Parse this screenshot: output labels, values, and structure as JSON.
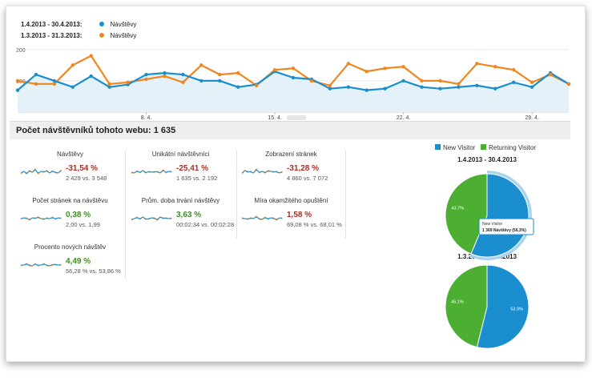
{
  "legend": [
    {
      "date": "1.4.2013 - 30.4.2013:",
      "label": "Návštěvy",
      "color": "#1a8ecf"
    },
    {
      "date": "1.3.2013 - 31.3.2013:",
      "label": "Návštěvy",
      "color": "#f0861f"
    }
  ],
  "chart_data": {
    "type": "line",
    "y_ticks": [
      "200",
      "100"
    ],
    "x_ticks": [
      "8. 4.",
      "15. 4.",
      "22. 4.",
      "29. 4."
    ],
    "ylim": [
      0,
      220
    ],
    "series": [
      {
        "name": "Návštěvy",
        "period": "1.4.2013 - 30.4.2013",
        "color": "#1a8ecf",
        "values": [
          70,
          120,
          100,
          80,
          115,
          80,
          88,
          120,
          125,
          120,
          100,
          100,
          80,
          88,
          130,
          110,
          105,
          75,
          80,
          70,
          75,
          100,
          80,
          75,
          80,
          85,
          75,
          95,
          80,
          125,
          90
        ]
      },
      {
        "name": "Návštěvy",
        "period": "1.3.2013 - 31.3.2013",
        "color": "#f0861f",
        "values": [
          100,
          90,
          90,
          150,
          180,
          90,
          95,
          105,
          115,
          95,
          150,
          120,
          125,
          85,
          135,
          140,
          100,
          85,
          155,
          130,
          140,
          145,
          100,
          100,
          90,
          155,
          145,
          135,
          95,
          120,
          90
        ]
      }
    ]
  },
  "summary": {
    "title": "Počet návštěvníků tohoto webu: 1 635"
  },
  "metrics": [
    {
      "title": "Návštěvy",
      "change": "-31,54 %",
      "trend": "negative",
      "compare": "2 429 vs. 3 548"
    },
    {
      "title": "Unikátní návštěvníci",
      "change": "-25,41 %",
      "trend": "negative",
      "compare": "1 635 vs. 2 192"
    },
    {
      "title": "Zobrazení stránek",
      "change": "-31,28 %",
      "trend": "negative",
      "compare": "4 860 vs. 7 072"
    },
    {
      "title": "Počet stránek na návštěvu",
      "change": "0,38 %",
      "trend": "positive",
      "compare": "2,00 vs. 1,99"
    },
    {
      "title": "Prům. doba trvání návštěvy",
      "change": "3,63 %",
      "trend": "positive",
      "compare": "00:02:34 vs. 00:02:28"
    },
    {
      "title": "Míra okamžitého opuštění",
      "change": "1,58 %",
      "trend": "negative",
      "compare": "69,08 % vs. 68,01 %"
    },
    {
      "title": "Procento nových návštěv",
      "change": "4,49 %",
      "trend": "positive",
      "compare": "56,28 % vs. 53,86 %"
    }
  ],
  "pie_legend": [
    {
      "label": "New Visitor",
      "color": "#1a8ecf"
    },
    {
      "label": "Returning Visitor",
      "color": "#4caf32"
    }
  ],
  "pies": [
    {
      "title": "1.4.2013 - 30.4.2013",
      "new_pct": 56.3,
      "returning_pct": 43.7,
      "new_label": "56.3%",
      "returning_label": "43.7%",
      "tooltip_title": "New Visitor",
      "tooltip_value": "1 369 Návštěvy (56.3%)"
    },
    {
      "title": "1.3.2013 - 31.3.2013",
      "new_pct": 53.9,
      "returning_pct": 46.1,
      "new_label": "53.9%",
      "returning_label": "46.1%"
    }
  ],
  "colors": {
    "new": "#1a8ecf",
    "returning": "#4caf32",
    "area": "#e5f1f9",
    "grid": "#e6e6e6"
  }
}
